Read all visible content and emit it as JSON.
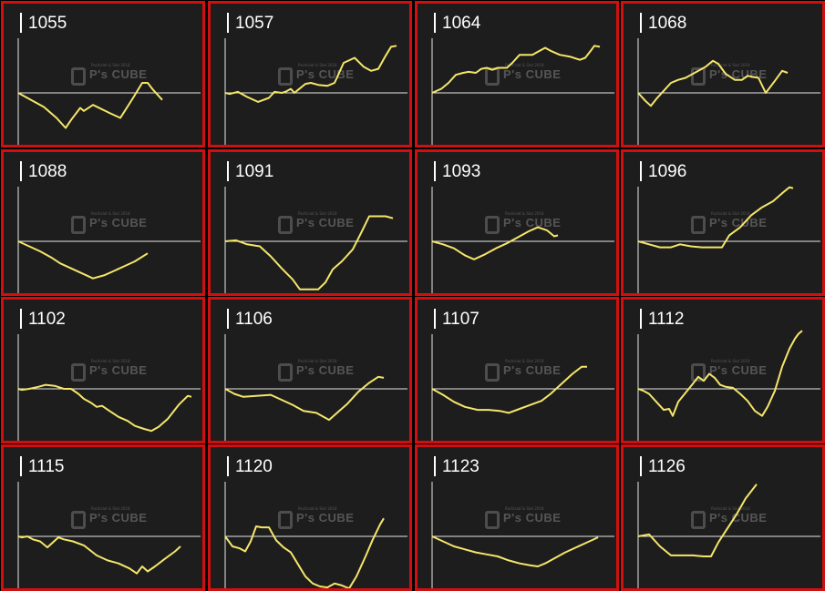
{
  "colors": {
    "line": "#f5e66a",
    "axis": "#e8e8e8",
    "border": "#d01010",
    "panel_bg": "#1d1d1d",
    "background": "#000000"
  },
  "chart_data": [
    {
      "type": "line",
      "title": "1055",
      "points": [
        [
          0,
          0
        ],
        [
          14,
          -7
        ],
        [
          28,
          -14
        ],
        [
          42,
          -25
        ],
        [
          52,
          -35
        ],
        [
          58,
          -27
        ],
        [
          68,
          -15
        ],
        [
          72,
          -18
        ],
        [
          82,
          -12
        ],
        [
          100,
          -20
        ],
        [
          112,
          -25
        ],
        [
          126,
          -5
        ],
        [
          136,
          10
        ],
        [
          142,
          10
        ],
        [
          148,
          3
        ],
        [
          158,
          -7
        ]
      ]
    },
    {
      "type": "line",
      "title": "1057",
      "points": [
        [
          0,
          0
        ],
        [
          5,
          -1
        ],
        [
          14,
          1
        ],
        [
          24,
          -4
        ],
        [
          36,
          -9
        ],
        [
          48,
          -5
        ],
        [
          54,
          1
        ],
        [
          62,
          0
        ],
        [
          66,
          1
        ],
        [
          72,
          4
        ],
        [
          76,
          0
        ],
        [
          80,
          3
        ],
        [
          88,
          9
        ],
        [
          94,
          10
        ],
        [
          102,
          8
        ],
        [
          112,
          7
        ],
        [
          120,
          10
        ],
        [
          130,
          30
        ],
        [
          142,
          35
        ],
        [
          152,
          26
        ],
        [
          160,
          22
        ],
        [
          168,
          24
        ],
        [
          176,
          37
        ],
        [
          182,
          46
        ],
        [
          188,
          47
        ]
      ]
    },
    {
      "type": "line",
      "title": "1064",
      "points": [
        [
          0,
          0
        ],
        [
          10,
          4
        ],
        [
          18,
          10
        ],
        [
          26,
          18
        ],
        [
          34,
          20
        ],
        [
          40,
          21
        ],
        [
          48,
          20
        ],
        [
          54,
          24
        ],
        [
          60,
          25
        ],
        [
          66,
          23
        ],
        [
          72,
          25
        ],
        [
          82,
          25
        ],
        [
          88,
          30
        ],
        [
          96,
          38
        ],
        [
          104,
          38
        ],
        [
          110,
          38
        ],
        [
          116,
          41
        ],
        [
          124,
          45
        ],
        [
          130,
          42
        ],
        [
          140,
          38
        ],
        [
          152,
          36
        ],
        [
          162,
          33
        ],
        [
          168,
          35
        ],
        [
          174,
          42
        ],
        [
          178,
          47
        ],
        [
          184,
          46
        ]
      ]
    },
    {
      "type": "line",
      "title": "1068",
      "points": [
        [
          0,
          0
        ],
        [
          8,
          -8
        ],
        [
          14,
          -13
        ],
        [
          20,
          -6
        ],
        [
          28,
          2
        ],
        [
          36,
          10
        ],
        [
          44,
          13
        ],
        [
          52,
          15
        ],
        [
          62,
          20
        ],
        [
          74,
          26
        ],
        [
          82,
          32
        ],
        [
          88,
          29
        ],
        [
          96,
          19
        ],
        [
          106,
          13
        ],
        [
          114,
          13
        ],
        [
          120,
          17
        ],
        [
          132,
          15
        ],
        [
          140,
          0
        ],
        [
          150,
          12
        ],
        [
          158,
          22
        ],
        [
          164,
          20
        ]
      ]
    },
    {
      "type": "line",
      "title": "1088",
      "points": [
        [
          0,
          0
        ],
        [
          12,
          -5
        ],
        [
          24,
          -10
        ],
        [
          36,
          -16
        ],
        [
          46,
          -22
        ],
        [
          58,
          -27
        ],
        [
          70,
          -32
        ],
        [
          82,
          -37
        ],
        [
          94,
          -34
        ],
        [
          104,
          -30
        ],
        [
          116,
          -25
        ],
        [
          128,
          -20
        ],
        [
          142,
          -12
        ]
      ]
    },
    {
      "type": "line",
      "title": "1091",
      "points": [
        [
          0,
          0
        ],
        [
          12,
          1
        ],
        [
          24,
          -3
        ],
        [
          38,
          -5
        ],
        [
          50,
          -15
        ],
        [
          62,
          -27
        ],
        [
          74,
          -38
        ],
        [
          82,
          -48
        ],
        [
          92,
          -48
        ],
        [
          102,
          -48
        ],
        [
          110,
          -41
        ],
        [
          118,
          -28
        ],
        [
          128,
          -20
        ],
        [
          140,
          -8
        ],
        [
          150,
          10
        ],
        [
          158,
          25
        ],
        [
          168,
          25
        ],
        [
          176,
          25
        ],
        [
          184,
          23
        ]
      ]
    },
    {
      "type": "line",
      "title": "1093",
      "points": [
        [
          0,
          0
        ],
        [
          12,
          -3
        ],
        [
          24,
          -7
        ],
        [
          36,
          -14
        ],
        [
          46,
          -18
        ],
        [
          58,
          -13
        ],
        [
          70,
          -7
        ],
        [
          82,
          -2
        ],
        [
          94,
          4
        ],
        [
          106,
          10
        ],
        [
          116,
          14
        ],
        [
          126,
          11
        ],
        [
          134,
          5
        ],
        [
          138,
          6
        ]
      ]
    },
    {
      "type": "line",
      "title": "1096",
      "points": [
        [
          0,
          0
        ],
        [
          12,
          -3
        ],
        [
          24,
          -6
        ],
        [
          36,
          -6
        ],
        [
          46,
          -3
        ],
        [
          58,
          -5
        ],
        [
          70,
          -6
        ],
        [
          82,
          -6
        ],
        [
          92,
          -6
        ],
        [
          100,
          6
        ],
        [
          112,
          14
        ],
        [
          124,
          26
        ],
        [
          136,
          34
        ],
        [
          148,
          40
        ],
        [
          158,
          48
        ],
        [
          166,
          54
        ],
        [
          170,
          53
        ]
      ]
    },
    {
      "type": "line",
      "title": "1102",
      "points": [
        [
          0,
          0
        ],
        [
          4,
          -1
        ],
        [
          12,
          0
        ],
        [
          22,
          2
        ],
        [
          30,
          4
        ],
        [
          40,
          3
        ],
        [
          50,
          0
        ],
        [
          58,
          0
        ],
        [
          66,
          -5
        ],
        [
          72,
          -10
        ],
        [
          80,
          -14
        ],
        [
          86,
          -18
        ],
        [
          92,
          -17
        ],
        [
          100,
          -22
        ],
        [
          110,
          -28
        ],
        [
          120,
          -32
        ],
        [
          128,
          -37
        ],
        [
          138,
          -40
        ],
        [
          146,
          -42
        ],
        [
          154,
          -38
        ],
        [
          164,
          -30
        ],
        [
          176,
          -16
        ],
        [
          186,
          -7
        ],
        [
          190,
          -8
        ]
      ]
    },
    {
      "type": "line",
      "title": "1106",
      "points": [
        [
          0,
          0
        ],
        [
          10,
          -5
        ],
        [
          20,
          -8
        ],
        [
          34,
          -7
        ],
        [
          50,
          -6
        ],
        [
          62,
          -11
        ],
        [
          74,
          -16
        ],
        [
          86,
          -22
        ],
        [
          100,
          -24
        ],
        [
          114,
          -31
        ],
        [
          124,
          -23
        ],
        [
          134,
          -15
        ],
        [
          146,
          -3
        ],
        [
          158,
          6
        ],
        [
          168,
          12
        ],
        [
          174,
          11
        ]
      ]
    },
    {
      "type": "line",
      "title": "1107",
      "points": [
        [
          0,
          0
        ],
        [
          12,
          -6
        ],
        [
          24,
          -13
        ],
        [
          36,
          -18
        ],
        [
          50,
          -21
        ],
        [
          62,
          -21
        ],
        [
          74,
          -22
        ],
        [
          84,
          -24
        ],
        [
          96,
          -20
        ],
        [
          108,
          -16
        ],
        [
          120,
          -12
        ],
        [
          130,
          -5
        ],
        [
          142,
          5
        ],
        [
          154,
          15
        ],
        [
          164,
          22
        ],
        [
          170,
          22
        ]
      ]
    },
    {
      "type": "line",
      "title": "1112",
      "points": [
        [
          0,
          0
        ],
        [
          6,
          -2
        ],
        [
          12,
          -5
        ],
        [
          20,
          -13
        ],
        [
          28,
          -21
        ],
        [
          34,
          -20
        ],
        [
          38,
          -27
        ],
        [
          44,
          -13
        ],
        [
          52,
          -4
        ],
        [
          60,
          5
        ],
        [
          66,
          12
        ],
        [
          72,
          8
        ],
        [
          78,
          15
        ],
        [
          84,
          11
        ],
        [
          90,
          4
        ],
        [
          96,
          2
        ],
        [
          104,
          1
        ],
        [
          112,
          -5
        ],
        [
          120,
          -12
        ],
        [
          128,
          -22
        ],
        [
          136,
          -27
        ],
        [
          142,
          -18
        ],
        [
          150,
          -2
        ],
        [
          158,
          22
        ],
        [
          166,
          40
        ],
        [
          172,
          50
        ],
        [
          176,
          55
        ],
        [
          180,
          58
        ]
      ]
    },
    {
      "type": "line",
      "title": "1115",
      "points": [
        [
          0,
          0
        ],
        [
          4,
          -1
        ],
        [
          10,
          0
        ],
        [
          16,
          -3
        ],
        [
          24,
          -5
        ],
        [
          32,
          -11
        ],
        [
          38,
          -6
        ],
        [
          44,
          -1
        ],
        [
          50,
          -3
        ],
        [
          60,
          -5
        ],
        [
          72,
          -9
        ],
        [
          86,
          -19
        ],
        [
          98,
          -24
        ],
        [
          110,
          -27
        ],
        [
          122,
          -32
        ],
        [
          130,
          -37
        ],
        [
          136,
          -30
        ],
        [
          142,
          -35
        ],
        [
          150,
          -30
        ],
        [
          160,
          -23
        ],
        [
          172,
          -15
        ],
        [
          178,
          -10
        ]
      ]
    },
    {
      "type": "line",
      "title": "1120",
      "points": [
        [
          0,
          0
        ],
        [
          8,
          -10
        ],
        [
          16,
          -12
        ],
        [
          22,
          -15
        ],
        [
          28,
          -5
        ],
        [
          34,
          10
        ],
        [
          40,
          9
        ],
        [
          48,
          9
        ],
        [
          56,
          -4
        ],
        [
          64,
          -11
        ],
        [
          72,
          -16
        ],
        [
          80,
          -28
        ],
        [
          88,
          -40
        ],
        [
          96,
          -47
        ],
        [
          104,
          -50
        ],
        [
          112,
          -51
        ],
        [
          120,
          -47
        ],
        [
          128,
          -49
        ],
        [
          136,
          -52
        ],
        [
          144,
          -40
        ],
        [
          154,
          -20
        ],
        [
          162,
          -3
        ],
        [
          170,
          12
        ],
        [
          174,
          18
        ]
      ]
    },
    {
      "type": "line",
      "title": "1123",
      "points": [
        [
          0,
          0
        ],
        [
          12,
          -5
        ],
        [
          24,
          -10
        ],
        [
          36,
          -13
        ],
        [
          48,
          -16
        ],
        [
          60,
          -18
        ],
        [
          72,
          -20
        ],
        [
          84,
          -24
        ],
        [
          96,
          -27
        ],
        [
          108,
          -29
        ],
        [
          116,
          -30
        ],
        [
          124,
          -27
        ],
        [
          134,
          -22
        ],
        [
          146,
          -16
        ],
        [
          158,
          -11
        ],
        [
          170,
          -6
        ],
        [
          182,
          -1
        ]
      ]
    },
    {
      "type": "line",
      "title": "1126",
      "points": [
        [
          0,
          0
        ],
        [
          12,
          2
        ],
        [
          24,
          -10
        ],
        [
          36,
          -19
        ],
        [
          48,
          -19
        ],
        [
          60,
          -19
        ],
        [
          72,
          -20
        ],
        [
          80,
          -20
        ],
        [
          88,
          -6
        ],
        [
          98,
          8
        ],
        [
          108,
          22
        ],
        [
          118,
          38
        ],
        [
          124,
          45
        ],
        [
          130,
          52
        ]
      ]
    }
  ],
  "watermark": {
    "text": "P's CUBE",
    "subtext": "Pachislot & Slot 2018"
  }
}
